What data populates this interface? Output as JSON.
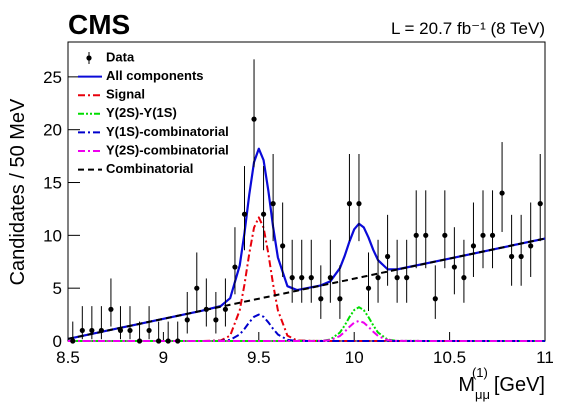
{
  "chart_data": {
    "type": "line",
    "title": "CMS",
    "subtitle": "L = 20.7 fb⁻¹ (8 TeV)",
    "y_label": "Candidates / 50 MeV",
    "x_label": {
      "main": "M",
      "sub": "μμ",
      "sup": "(1)",
      "unit": "[GeV]"
    },
    "xlim": [
      8.5,
      11
    ],
    "ylim": [
      0,
      28.3
    ],
    "xticks": [
      8.5,
      9,
      9.5,
      10,
      10.5,
      11
    ],
    "yticks": [
      0,
      5,
      10,
      15,
      20,
      25
    ],
    "legend": "top-left",
    "x": [
      8.5,
      8.75,
      9.0,
      9.2,
      9.3,
      9.35,
      9.4,
      9.425,
      9.45,
      9.475,
      9.5,
      9.525,
      9.55,
      9.575,
      9.6,
      9.65,
      9.7,
      9.825,
      9.875,
      9.925,
      9.95,
      9.975,
      10.0,
      10.025,
      10.05,
      10.075,
      10.1,
      10.125,
      10.175,
      10.225,
      10.5,
      10.75,
      11.0
    ],
    "series": [
      {
        "name": "Data",
        "color": "#000000",
        "style": "points",
        "x": [
          8.525,
          8.575,
          8.625,
          8.675,
          8.725,
          8.775,
          8.825,
          8.875,
          8.925,
          8.975,
          9.025,
          9.075,
          9.125,
          9.175,
          9.225,
          9.275,
          9.325,
          9.375,
          9.425,
          9.475,
          9.525,
          9.575,
          9.625,
          9.675,
          9.725,
          9.775,
          9.825,
          9.875,
          9.925,
          9.975,
          10.025,
          10.075,
          10.125,
          10.175,
          10.225,
          10.275,
          10.325,
          10.375,
          10.425,
          10.475,
          10.525,
          10.575,
          10.625,
          10.675,
          10.725,
          10.775,
          10.825,
          10.875,
          10.925,
          10.975
        ],
        "values": [
          0,
          1,
          1,
          1,
          3,
          1,
          1,
          0,
          1,
          0,
          0,
          0,
          2,
          5,
          3,
          2,
          3,
          7,
          12,
          21,
          12,
          13,
          9,
          6,
          6,
          6,
          4,
          6,
          4,
          13,
          13,
          5,
          6,
          8,
          6,
          6,
          10,
          10,
          4,
          10,
          7,
          6,
          9,
          10,
          10,
          14,
          8,
          8,
          9,
          13
        ],
        "error_low": [
          0,
          0.83,
          0.83,
          0.83,
          1.63,
          0.83,
          0.83,
          0,
          0.83,
          0,
          0,
          0,
          1.29,
          2.16,
          1.63,
          1.29,
          1.63,
          2.58,
          3.41,
          4.55,
          3.41,
          3.55,
          2.94,
          2.38,
          2.38,
          2.38,
          1.91,
          2.38,
          1.91,
          3.55,
          3.55,
          2.16,
          2.38,
          2.77,
          2.38,
          2.38,
          3.11,
          3.11,
          1.91,
          3.11,
          2.58,
          2.38,
          2.94,
          3.11,
          3.11,
          3.68,
          2.77,
          2.77,
          2.94,
          3.55
        ],
        "error_high": [
          1.84,
          2.3,
          2.3,
          2.3,
          2.92,
          2.3,
          2.3,
          1.84,
          2.3,
          1.84,
          1.84,
          1.84,
          2.64,
          3.38,
          2.92,
          2.64,
          2.92,
          3.77,
          4.56,
          5.66,
          4.56,
          4.7,
          4.11,
          3.58,
          3.58,
          3.58,
          3.16,
          3.58,
          3.16,
          4.7,
          4.7,
          3.38,
          3.58,
          3.94,
          3.58,
          3.58,
          4.26,
          4.26,
          3.16,
          4.26,
          3.77,
          3.58,
          4.11,
          4.26,
          4.26,
          4.83,
          3.94,
          3.94,
          4.11,
          4.7
        ]
      },
      {
        "name": "All components",
        "color": "#0a0ad8",
        "style": "solid",
        "values": [
          0.2,
          1.15,
          2.1,
          2.86,
          3.3,
          4.05,
          7.15,
          10.23,
          13.85,
          16.93,
          18.2,
          17.12,
          14.23,
          10.8,
          7.91,
          5.19,
          4.82,
          5.26,
          5.65,
          6.89,
          8.05,
          9.41,
          10.57,
          11.1,
          10.76,
          9.79,
          8.62,
          7.65,
          6.79,
          6.78,
          7.8,
          8.75,
          9.7
        ]
      },
      {
        "name": "Signal",
        "color": "#e8000b",
        "style": "dashdot",
        "values": [
          0,
          0,
          0,
          0,
          0.05,
          0.51,
          2.91,
          5.36,
          8.27,
          10.73,
          11.7,
          10.73,
          8.27,
          5.36,
          2.91,
          0.51,
          0.05,
          0,
          0,
          0,
          0,
          0,
          0,
          0,
          0,
          0,
          0,
          0,
          0,
          0,
          0,
          0,
          0
        ]
      },
      {
        "name": "Υ(2S)-Υ(1S)",
        "color": "#00dd00",
        "style": "dashdotdot",
        "values": [
          0,
          0,
          0,
          0,
          0,
          0,
          0,
          0,
          0,
          0,
          0,
          0,
          0,
          0,
          0,
          0,
          0,
          0.01,
          0.14,
          0.8,
          1.47,
          2.26,
          2.93,
          3.2,
          2.93,
          2.26,
          1.47,
          0.8,
          0.14,
          0.01,
          0,
          0,
          0
        ]
      },
      {
        "name": "Υ(1S)-combinatorial",
        "color": "#0000cc",
        "style": "dashdot",
        "values": [
          0,
          0,
          0,
          0,
          0.01,
          0.11,
          0.62,
          1.15,
          1.77,
          2.29,
          2.5,
          2.29,
          1.77,
          1.15,
          0.62,
          0.11,
          0.01,
          0,
          0,
          0,
          0,
          0,
          0,
          0,
          0,
          0,
          0,
          0,
          0,
          0,
          0,
          0,
          0
        ]
      },
      {
        "name": "Υ(2S)-combinatorial",
        "color": "#ee00ee",
        "style": "dashdot",
        "values": [
          0,
          0,
          0,
          0,
          0,
          0,
          0,
          0,
          0,
          0,
          0,
          0,
          0,
          0,
          0,
          0,
          0,
          0.01,
          0.08,
          0.47,
          0.87,
          1.34,
          1.74,
          1.9,
          1.74,
          1.34,
          0.87,
          0.47,
          0.08,
          0.01,
          0,
          0,
          0
        ]
      },
      {
        "name": "Combinatorial",
        "color": "#000000",
        "style": "dashed",
        "values": [
          0.2,
          1.15,
          2.1,
          2.86,
          3.24,
          3.43,
          3.62,
          3.72,
          3.81,
          3.91,
          4.0,
          4.1,
          4.19,
          4.29,
          4.38,
          4.57,
          4.76,
          5.24,
          5.43,
          5.62,
          5.71,
          5.81,
          5.9,
          6.0,
          6.09,
          6.19,
          6.28,
          6.38,
          6.57,
          6.76,
          7.8,
          8.75,
          9.7
        ]
      }
    ]
  }
}
